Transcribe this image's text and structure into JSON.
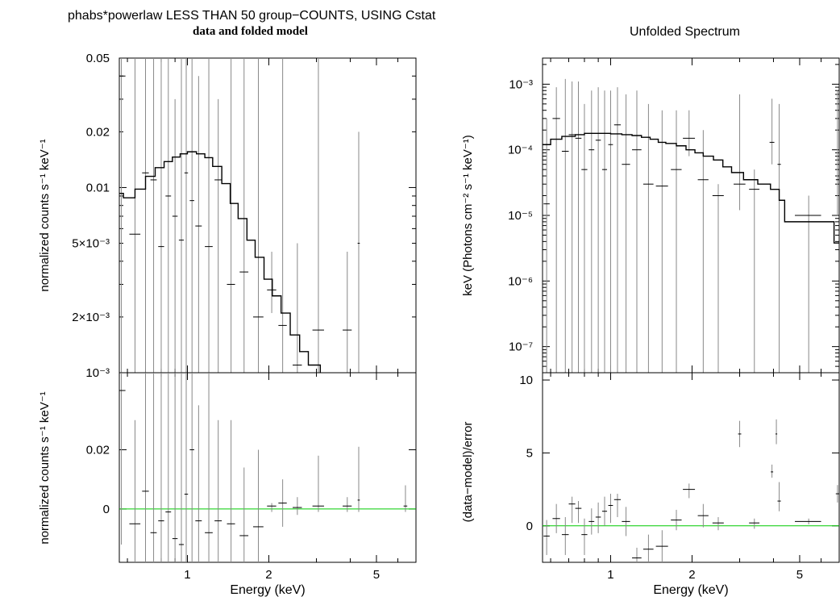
{
  "left_title": "phabs*powerlaw LESS THAN 50 group−COUNTS, USING Cstat",
  "left_subtitle": "data and folded model",
  "right_title": "Unfolded Spectrum",
  "colors": {
    "data": "#000000",
    "errbar": "#888888",
    "model": "#000000",
    "zero_line": "#00cc00"
  },
  "chart_data": [
    {
      "id": "left-top",
      "type": "line",
      "title": "phabs*powerlaw LESS THAN 50 group−COUNTS, USING Cstat",
      "subtitle": "data and folded model",
      "xscale": "log",
      "xlim": [
        0.56,
        7.0
      ],
      "yscale": "log",
      "ylim": [
        0.001,
        0.05
      ],
      "ylabel": "normalized counts s⁻¹ keV⁻¹",
      "yticks": [
        {
          "v": 0.05,
          "label": "0.05"
        },
        {
          "v": 0.02,
          "label": "0.02"
        },
        {
          "v": 0.01,
          "label": "0.01"
        },
        {
          "v": 0.005,
          "label": "5×10⁻³"
        },
        {
          "v": 0.002,
          "label": "2×10⁻³"
        },
        {
          "v": 0.001,
          "label": "10⁻³"
        }
      ],
      "model": [
        [
          0.56,
          0.0093
        ],
        [
          0.58,
          0.0088
        ],
        [
          0.64,
          0.0098
        ],
        [
          0.7,
          0.0115
        ],
        [
          0.76,
          0.0128
        ],
        [
          0.82,
          0.0138
        ],
        [
          0.88,
          0.0146
        ],
        [
          0.94,
          0.0152
        ],
        [
          1.0,
          0.0156
        ],
        [
          1.08,
          0.0152
        ],
        [
          1.16,
          0.0145
        ],
        [
          1.24,
          0.013
        ],
        [
          1.34,
          0.0105
        ],
        [
          1.44,
          0.0082
        ],
        [
          1.54,
          0.0068
        ],
        [
          1.66,
          0.0052
        ],
        [
          1.78,
          0.0042
        ],
        [
          1.92,
          0.0032
        ],
        [
          2.06,
          0.0026
        ],
        [
          2.22,
          0.0021
        ],
        [
          2.4,
          0.0016
        ],
        [
          2.6,
          0.0013
        ],
        [
          2.8,
          0.0011
        ],
        [
          3.1,
          0.001
        ]
      ],
      "points": [
        {
          "x": 0.57,
          "y": 0.04,
          "xe": 0.02,
          "lo": 0.001,
          "hi": 0.05
        },
        {
          "x": 0.64,
          "y": 0.0056,
          "xe": 0.03,
          "lo": 0.001,
          "hi": 0.05
        },
        {
          "x": 0.7,
          "y": 0.012,
          "xe": 0.02,
          "lo": 0.001,
          "hi": 0.05
        },
        {
          "x": 0.75,
          "y": 0.011,
          "xe": 0.02,
          "lo": 0.001,
          "hi": 0.05
        },
        {
          "x": 0.8,
          "y": 0.0048,
          "xe": 0.02,
          "lo": 0.001,
          "hi": 0.05
        },
        {
          "x": 0.85,
          "y": 0.009,
          "xe": 0.02,
          "lo": 0.001,
          "hi": 0.05
        },
        {
          "x": 0.9,
          "y": 0.007,
          "xe": 0.02,
          "lo": 0.001,
          "hi": 0.03
        },
        {
          "x": 0.95,
          "y": 0.0052,
          "xe": 0.02,
          "lo": 0.001,
          "hi": 0.05
        },
        {
          "x": 0.99,
          "y": 0.012,
          "xe": 0.015,
          "lo": 0.001,
          "hi": 0.05
        },
        {
          "x": 1.04,
          "y": 0.0085,
          "xe": 0.02,
          "lo": 0.001,
          "hi": 0.05
        },
        {
          "x": 1.1,
          "y": 0.0062,
          "xe": 0.03,
          "lo": 0.001,
          "hi": 0.04
        },
        {
          "x": 1.2,
          "y": 0.0048,
          "xe": 0.04,
          "lo": 0.001,
          "hi": 0.05
        },
        {
          "x": 1.3,
          "y": 0.011,
          "xe": 0.04,
          "lo": 0.001,
          "hi": 0.03
        },
        {
          "x": 1.45,
          "y": 0.003,
          "xe": 0.05,
          "lo": 0.001,
          "hi": 0.05
        },
        {
          "x": 1.62,
          "y": 0.0035,
          "xe": 0.06,
          "lo": 0.001,
          "hi": 0.05
        },
        {
          "x": 1.83,
          "y": 0.002,
          "xe": 0.08,
          "lo": 0.001,
          "hi": 0.05
        },
        {
          "x": 2.05,
          "y": 0.0028,
          "xe": 0.08,
          "lo": 0.0021,
          "hi": 0.0045
        },
        {
          "x": 2.25,
          "y": 0.0018,
          "xe": 0.08,
          "lo": 0.001,
          "hi": 0.05
        },
        {
          "x": 2.55,
          "y": 0.0011,
          "xe": 0.1,
          "lo": 0.001,
          "hi": 0.005
        },
        {
          "x": 3.05,
          "y": 0.0017,
          "xe": 0.15,
          "lo": 0.001,
          "hi": 0.05
        },
        {
          "x": 3.9,
          "y": 0.0017,
          "xe": 0.15,
          "lo": 0.001,
          "hi": 0.0045
        },
        {
          "x": 4.3,
          "y": 0.005,
          "xe": 0.04,
          "lo": 0.001,
          "hi": 0.02
        }
      ]
    },
    {
      "id": "left-bottom",
      "type": "scatter",
      "xscale": "log",
      "xlim": [
        0.56,
        7.0
      ],
      "yscale": "linear",
      "ylim": [
        -0.018,
        0.046
      ],
      "xlabel": "Energy (keV)",
      "ylabel": "normalized counts s⁻¹ keV⁻¹",
      "xticks": [
        {
          "v": 1,
          "label": "1"
        },
        {
          "v": 2,
          "label": "2"
        },
        {
          "v": 5,
          "label": "5"
        }
      ],
      "yticks": [
        {
          "v": 0.02,
          "label": "0.02"
        },
        {
          "v": 0,
          "label": "0"
        }
      ],
      "zero_line": 0,
      "points": [
        {
          "x": 0.57,
          "y": 0.04,
          "xe": 0.02,
          "lo": -0.012,
          "hi": 0.046
        },
        {
          "x": 0.64,
          "y": -0.005,
          "xe": 0.03,
          "lo": -0.018,
          "hi": 0.03
        },
        {
          "x": 0.7,
          "y": 0.006,
          "xe": 0.02,
          "lo": -0.018,
          "hi": 0.046
        },
        {
          "x": 0.75,
          "y": -0.008,
          "xe": 0.02,
          "lo": -0.018,
          "hi": 0.046
        },
        {
          "x": 0.8,
          "y": -0.004,
          "xe": 0.02,
          "lo": -0.018,
          "hi": 0.046
        },
        {
          "x": 0.85,
          "y": -0.001,
          "xe": 0.02,
          "lo": -0.018,
          "hi": 0.046
        },
        {
          "x": 0.9,
          "y": -0.01,
          "xe": 0.02,
          "lo": -0.018,
          "hi": 0.046
        },
        {
          "x": 0.95,
          "y": -0.012,
          "xe": 0.02,
          "lo": -0.018,
          "hi": 0.046
        },
        {
          "x": 0.99,
          "y": 0.005,
          "xe": 0.015,
          "lo": -0.018,
          "hi": 0.046
        },
        {
          "x": 1.04,
          "y": 0.02,
          "xe": 0.02,
          "lo": -0.018,
          "hi": 0.046
        },
        {
          "x": 1.1,
          "y": -0.004,
          "xe": 0.03,
          "lo": -0.018,
          "hi": 0.035
        },
        {
          "x": 1.2,
          "y": -0.008,
          "xe": 0.04,
          "lo": -0.018,
          "hi": 0.046
        },
        {
          "x": 1.3,
          "y": -0.004,
          "xe": 0.04,
          "lo": -0.018,
          "hi": 0.03
        },
        {
          "x": 1.45,
          "y": -0.005,
          "xe": 0.05,
          "lo": -0.018,
          "hi": 0.03
        },
        {
          "x": 1.62,
          "y": -0.009,
          "xe": 0.06,
          "lo": -0.018,
          "hi": 0.014
        },
        {
          "x": 1.83,
          "y": -0.006,
          "xe": 0.08,
          "lo": -0.018,
          "hi": 0.02
        },
        {
          "x": 2.05,
          "y": 0.001,
          "xe": 0.08,
          "lo": -0.001,
          "hi": 0.002
        },
        {
          "x": 2.25,
          "y": 0.002,
          "xe": 0.08,
          "lo": -0.006,
          "hi": 0.01
        },
        {
          "x": 2.55,
          "y": 0.0005,
          "xe": 0.1,
          "lo": -0.002,
          "hi": 0.004
        },
        {
          "x": 3.05,
          "y": 0.001,
          "xe": 0.15,
          "lo": -0.001,
          "hi": 0.018
        },
        {
          "x": 3.9,
          "y": 0.001,
          "xe": 0.15,
          "lo": -0.001,
          "hi": 0.004
        },
        {
          "x": 4.3,
          "y": 0.003,
          "xe": 0.04,
          "lo": -0.001,
          "hi": 0.021
        },
        {
          "x": 6.4,
          "y": 0.001,
          "xe": 0.1,
          "lo": -0.001,
          "hi": 0.008
        }
      ]
    },
    {
      "id": "right-top",
      "type": "line",
      "title": "Unfolded Spectrum",
      "xscale": "log",
      "xlim": [
        0.56,
        7.0
      ],
      "yscale": "log",
      "ylim": [
        4e-08,
        0.0025
      ],
      "ylabel": "keV (Photons cm⁻² s⁻¹ keV⁻¹)",
      "yticks": [
        {
          "v": 0.001,
          "label": "10⁻³"
        },
        {
          "v": 0.0001,
          "label": "10⁻⁴"
        },
        {
          "v": 1e-05,
          "label": "10⁻⁵"
        },
        {
          "v": 1e-06,
          "label": "10⁻⁶"
        },
        {
          "v": 1e-07,
          "label": "10⁻⁷"
        }
      ],
      "model": [
        [
          0.56,
          0.00012
        ],
        [
          0.6,
          0.000145
        ],
        [
          0.66,
          0.00016
        ],
        [
          0.74,
          0.00017
        ],
        [
          0.8,
          0.000178
        ],
        [
          0.9,
          0.000178
        ],
        [
          1.0,
          0.000175
        ],
        [
          1.1,
          0.00017
        ],
        [
          1.2,
          0.000165
        ],
        [
          1.3,
          0.000155
        ],
        [
          1.4,
          0.000145
        ],
        [
          1.5,
          0.00013
        ],
        [
          1.6,
          0.000125
        ],
        [
          1.75,
          0.000115
        ],
        [
          1.9,
          0.0001
        ],
        [
          2.05,
          9e-05
        ],
        [
          2.2,
          8e-05
        ],
        [
          2.4,
          7e-05
        ],
        [
          2.6,
          5.5e-05
        ],
        [
          2.8,
          4.5e-05
        ],
        [
          3.1,
          3.5e-05
        ],
        [
          3.5,
          3e-05
        ],
        [
          3.9,
          2.5e-05
        ],
        [
          4.2,
          1.7e-05
        ],
        [
          4.4,
          8e-06
        ],
        [
          6.7,
          3.8e-06
        ],
        [
          7.0,
          3.8e-06
        ]
      ],
      "points": [
        {
          "x": 0.58,
          "y": 1.5e-05,
          "xe": 0.015,
          "lo": 4e-08,
          "hi": 0.0003
        },
        {
          "x": 0.63,
          "y": 0.0003,
          "xe": 0.02,
          "lo": 4e-08,
          "hi": 0.0009
        },
        {
          "x": 0.68,
          "y": 9.5e-05,
          "xe": 0.02,
          "lo": 4e-08,
          "hi": 0.0012
        },
        {
          "x": 0.72,
          "y": 0.00017,
          "xe": 0.02,
          "lo": 4e-08,
          "hi": 0.0011
        },
        {
          "x": 0.76,
          "y": 0.00015,
          "xe": 0.02,
          "lo": 4e-08,
          "hi": 0.0011
        },
        {
          "x": 0.8,
          "y": 5e-05,
          "xe": 0.02,
          "lo": 4e-08,
          "hi": 0.0005
        },
        {
          "x": 0.85,
          "y": 0.0001,
          "xe": 0.02,
          "lo": 4e-08,
          "hi": 0.0008
        },
        {
          "x": 0.9,
          "y": 0.00014,
          "xe": 0.02,
          "lo": 4e-08,
          "hi": 0.0009
        },
        {
          "x": 0.95,
          "y": 5e-05,
          "xe": 0.02,
          "lo": 4e-08,
          "hi": 0.0008
        },
        {
          "x": 1.0,
          "y": 0.00012,
          "xe": 0.02,
          "lo": 4e-08,
          "hi": 0.0008
        },
        {
          "x": 1.06,
          "y": 0.00024,
          "xe": 0.03,
          "lo": 4e-08,
          "hi": 0.0009
        },
        {
          "x": 1.14,
          "y": 6e-05,
          "xe": 0.04,
          "lo": 4e-08,
          "hi": 0.0007
        },
        {
          "x": 1.25,
          "y": 0.0001,
          "xe": 0.05,
          "lo": 4e-08,
          "hi": 0.0008
        },
        {
          "x": 1.38,
          "y": 3e-05,
          "xe": 0.06,
          "lo": 4e-08,
          "hi": 0.0005
        },
        {
          "x": 1.55,
          "y": 2.8e-05,
          "xe": 0.08,
          "lo": 4e-08,
          "hi": 0.0004
        },
        {
          "x": 1.75,
          "y": 5e-05,
          "xe": 0.08,
          "lo": 4e-08,
          "hi": 0.0004
        },
        {
          "x": 1.95,
          "y": 0.00015,
          "xe": 0.1,
          "lo": 8e-05,
          "hi": 0.0004
        },
        {
          "x": 2.2,
          "y": 3.5e-05,
          "xe": 0.1,
          "lo": 4e-08,
          "hi": 0.0002
        },
        {
          "x": 2.5,
          "y": 2e-05,
          "xe": 0.12,
          "lo": 4e-08,
          "hi": 3e-05
        },
        {
          "x": 3.0,
          "y": 3e-05,
          "xe": 0.15,
          "lo": 1.2e-05,
          "hi": 0.0007
        },
        {
          "x": 3.4,
          "y": 2.5e-05,
          "xe": 0.15,
          "lo": 4e-08,
          "hi": 5e-05
        },
        {
          "x": 3.95,
          "y": 0.00013,
          "xe": 0.08,
          "lo": 6e-05,
          "hi": 0.0006
        },
        {
          "x": 4.2,
          "y": 6e-05,
          "xe": 0.06,
          "lo": 4e-08,
          "hi": 0.0005
        },
        {
          "x": 5.4,
          "y": 1e-05,
          "xe": 0.6,
          "lo": 4e-08,
          "hi": 2e-05
        },
        {
          "x": 6.9,
          "y": 3.5e-05,
          "xe": 0.1,
          "lo": 1e-05,
          "hi": 0.0008
        }
      ]
    },
    {
      "id": "right-bottom",
      "type": "scatter",
      "xscale": "log",
      "xlim": [
        0.56,
        7.0
      ],
      "yscale": "linear",
      "ylim": [
        -2.5,
        10.5
      ],
      "xlabel": "Energy (keV)",
      "ylabel": "(data−model)/error",
      "xticks": [
        {
          "v": 1,
          "label": "1"
        },
        {
          "v": 2,
          "label": "2"
        },
        {
          "v": 5,
          "label": "5"
        }
      ],
      "yticks": [
        {
          "v": 10,
          "label": "10"
        },
        {
          "v": 5,
          "label": "5"
        },
        {
          "v": 0,
          "label": "0"
        }
      ],
      "zero_line": 0,
      "points": [
        {
          "x": 0.58,
          "y": -0.7,
          "xe": 0.015,
          "lo": -2.0,
          "hi": 0.4
        },
        {
          "x": 0.63,
          "y": 0.5,
          "xe": 0.02,
          "lo": -0.5,
          "hi": 1.5
        },
        {
          "x": 0.68,
          "y": -0.6,
          "xe": 0.02,
          "lo": -2.0,
          "hi": 0.6
        },
        {
          "x": 0.72,
          "y": 1.5,
          "xe": 0.02,
          "lo": 0.2,
          "hi": 2.0
        },
        {
          "x": 0.76,
          "y": 1.2,
          "xe": 0.02,
          "lo": 0.2,
          "hi": 1.7
        },
        {
          "x": 0.8,
          "y": -0.6,
          "xe": 0.02,
          "lo": -2.0,
          "hi": 0.5
        },
        {
          "x": 0.85,
          "y": 0.3,
          "xe": 0.02,
          "lo": -0.6,
          "hi": 1.2
        },
        {
          "x": 0.9,
          "y": 0.6,
          "xe": 0.02,
          "lo": -0.5,
          "hi": 1.6
        },
        {
          "x": 0.95,
          "y": 1.0,
          "xe": 0.02,
          "lo": 0.0,
          "hi": 2.0
        },
        {
          "x": 1.0,
          "y": 1.4,
          "xe": 0.02,
          "lo": 0.2,
          "hi": 2.2
        },
        {
          "x": 1.06,
          "y": 1.8,
          "xe": 0.03,
          "lo": 0.6,
          "hi": 2.2
        },
        {
          "x": 1.14,
          "y": 0.3,
          "xe": 0.04,
          "lo": -0.7,
          "hi": 1.3
        },
        {
          "x": 1.25,
          "y": -2.2,
          "xe": 0.05,
          "lo": -2.5,
          "hi": -1.5
        },
        {
          "x": 1.38,
          "y": -1.6,
          "xe": 0.06,
          "lo": -2.5,
          "hi": -0.6
        },
        {
          "x": 1.55,
          "y": -1.4,
          "xe": 0.08,
          "lo": -2.5,
          "hi": -0.3
        },
        {
          "x": 1.75,
          "y": 0.4,
          "xe": 0.08,
          "lo": -0.3,
          "hi": 1.1
        },
        {
          "x": 1.95,
          "y": 2.5,
          "xe": 0.1,
          "lo": 1.9,
          "hi": 2.9
        },
        {
          "x": 2.2,
          "y": 0.7,
          "xe": 0.1,
          "lo": -0.1,
          "hi": 1.5
        },
        {
          "x": 2.5,
          "y": 0.2,
          "xe": 0.12,
          "lo": -0.3,
          "hi": 0.6
        },
        {
          "x": 3.0,
          "y": 6.3,
          "xe": 0.04,
          "lo": 5.4,
          "hi": 7.2
        },
        {
          "x": 3.4,
          "y": 0.2,
          "xe": 0.15,
          "lo": -0.2,
          "hi": 0.5
        },
        {
          "x": 3.95,
          "y": 3.7,
          "xe": 0.04,
          "lo": 3.3,
          "hi": 4.2
        },
        {
          "x": 4.1,
          "y": 6.3,
          "xe": 0.03,
          "lo": 5.6,
          "hi": 7.3
        },
        {
          "x": 4.2,
          "y": 1.7,
          "xe": 0.06,
          "lo": 1.0,
          "hi": 3.0
        },
        {
          "x": 5.4,
          "y": 0.3,
          "xe": 0.6,
          "lo": 0.1,
          "hi": 0.5
        },
        {
          "x": 6.9,
          "y": 2.2,
          "xe": 0.1,
          "lo": 1.6,
          "hi": 2.8
        }
      ]
    }
  ]
}
